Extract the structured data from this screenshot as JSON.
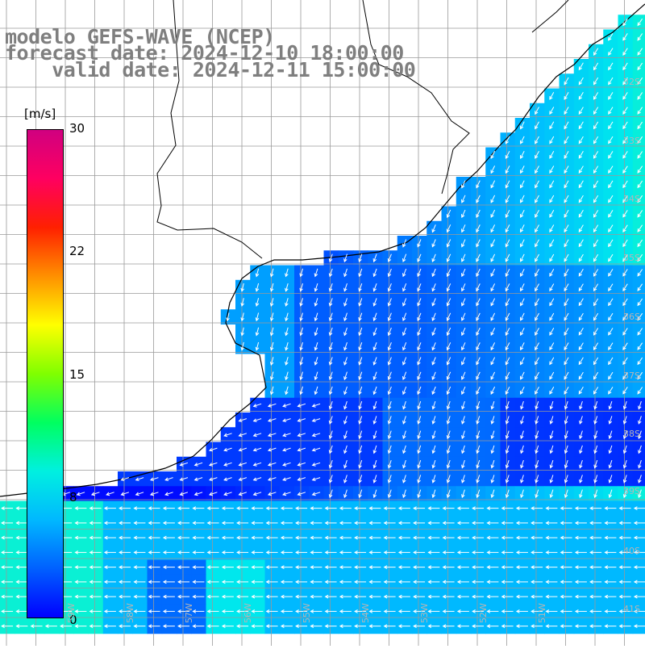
{
  "title": {
    "line1": "modelo GEFS-WAVE (NCEP)",
    "line2": "forecast date: 2024-12-10 18:00:00",
    "line3": "    valid date: 2024-12-11 15:00:00"
  },
  "colorbar": {
    "unit": "[m/s]",
    "ticks": [
      "30",
      "22",
      "15",
      "8",
      "0"
    ],
    "colors": [
      "#0000ff",
      "#0060ff",
      "#00b8ff",
      "#00f0e0",
      "#00ff60",
      "#80ff00",
      "#ffff00",
      "#ff9000",
      "#ff2000",
      "#ff0060",
      "#d00080"
    ]
  },
  "lat_labels": [
    "32S",
    "33S",
    "34S",
    "35S",
    "36S",
    "37S",
    "38S",
    "39S",
    "40S",
    "41S"
  ],
  "lon_labels": [
    "59W",
    "58W",
    "57W",
    "56W",
    "55W",
    "54W",
    "53W",
    "52W",
    "51W"
  ],
  "colors": {
    "land": "#ffffff",
    "coast": "#000000",
    "grid": "#9a9a9a",
    "arrow": "#ffffff"
  }
}
